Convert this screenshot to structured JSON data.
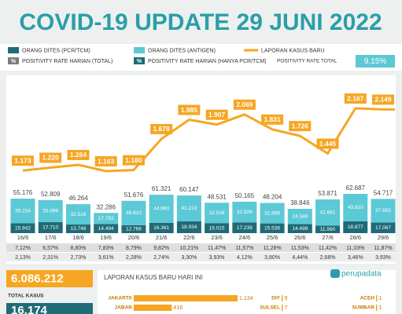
{
  "chart_data": {
    "type": "bar_line",
    "title": "COVID-19 UPDATE 29 JUNI 2022",
    "categories": [
      "16/6",
      "17/6",
      "18/6",
      "19/6",
      "20/6",
      "21/6",
      "22/6",
      "23/6",
      "24/6",
      "25/6",
      "26/6",
      "27/6",
      "28/6",
      "29/6"
    ],
    "series": [
      {
        "name": "ORANG DITES (PCR/TCM)",
        "color": "#1f6b78",
        "values": [
          15942,
          17710,
          13748,
          14494,
          12766,
          16361,
          18934,
          16015,
          17239,
          15538,
          14498,
          11990,
          18877,
          17067
        ],
        "value_labels": [
          "15.942",
          "17.710",
          "13.748",
          "14.494",
          "12.766",
          "16.361",
          "18.934",
          "16.015",
          "17.239",
          "15.538",
          "14.498",
          "11.990",
          "18.877",
          "17.067"
        ]
      },
      {
        "name": "ORANG DITES (ANTIGEN)",
        "color": "#5cc9d6",
        "values": [
          39234,
          35099,
          32516,
          17792,
          38910,
          44960,
          41213,
          32516,
          32926,
          32666,
          24348,
          41881,
          43810,
          37650
        ],
        "value_labels": [
          "39.234",
          "35.099",
          "32.516",
          "17.792",
          "38.910",
          "44.960",
          "41.213",
          "32.516",
          "32.926",
          "32.666",
          "24.348",
          "41.881",
          "43.810",
          "37.650"
        ]
      },
      {
        "name": "LAPORAN KASUS BARU",
        "color": "#f6a623",
        "axis": "y2",
        "values": [
          1173,
          1220,
          1264,
          1163,
          1180,
          1678,
          1985,
          1907,
          2069,
          1831,
          1726,
          1445,
          2167,
          2149
        ],
        "value_labels": [
          "1.173",
          "1.220",
          "1.264",
          "1.163",
          "1.180",
          "1.678",
          "1.985",
          "1.907",
          "2.069",
          "1.831",
          "1.726",
          "1.445",
          "2.167",
          "2.149"
        ]
      }
    ],
    "totals": [
      "55.176",
      "52.809",
      "46.264",
      "32.286",
      "51.676",
      "61.321",
      "60.147",
      "48.531",
      "50.165",
      "48.204",
      "38.846",
      "53.871",
      "62.687",
      "54.717"
    ],
    "positivity_icon": "%",
    "positivity_rows": [
      {
        "name": "POSITIVITY RATE HARIAN (TOTAL)",
        "color": "#7d7d7d",
        "labels": [
          "7,12%",
          "6,57%",
          "8,80%",
          "7,83%",
          "8,79%",
          "9,82%",
          "10,21%",
          "11,47%",
          "11,57%",
          "11,28%",
          "11,53%",
          "11,42%",
          "11,03%",
          "11,87%"
        ]
      },
      {
        "name": "POSITIVITY RATE HARIAN (HANYA PCR/TCM)",
        "color": "#1f6b78",
        "labels": [
          "2,13%",
          "2,31%",
          "2,73%",
          "3,61%",
          "2,28%",
          "2,74%",
          "3,30%",
          "3,93%",
          "4,12%",
          "3,80%",
          "4,44%",
          "2,68%",
          "3,46%",
          "3,93%"
        ]
      }
    ],
    "positivity_total_label": "POSITIVITY RATE TOTAL",
    "positivity_total_value": "9,15%"
  },
  "summary": {
    "total_cases": "6.086.212",
    "total_cases_label": "TOTAL KASUS",
    "second_value": "16.174"
  },
  "report": {
    "title": "LAPORAN KASUS BARU HARI INI",
    "color": "#f6a623",
    "items": [
      {
        "province": "JAKARTA",
        "value": 1134,
        "label": "1.134"
      },
      {
        "province": "JABAR",
        "value": 416,
        "label": "416"
      },
      {
        "province": "DIY",
        "value": 9,
        "label": "9"
      },
      {
        "province": "SULSEL",
        "value": 7,
        "label": "7"
      },
      {
        "province": "ACEH",
        "value": 1,
        "label": "1"
      },
      {
        "province": "SUMBAR",
        "value": 1,
        "label": "1"
      }
    ]
  },
  "logo": "perupadata"
}
